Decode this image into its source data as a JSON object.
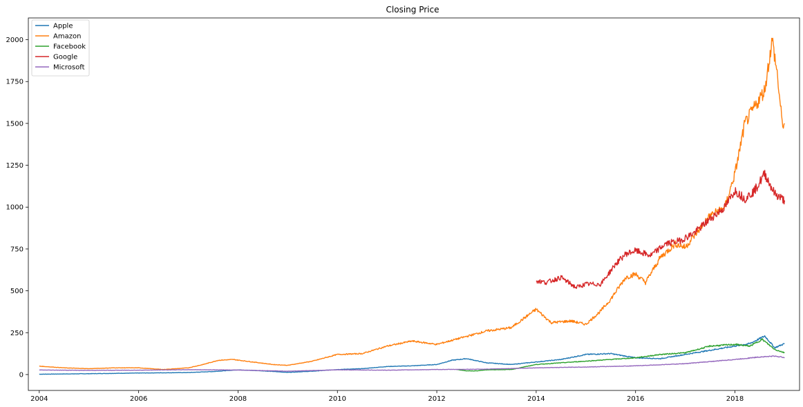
{
  "chart_data": {
    "type": "line",
    "title": "Closing Price",
    "xlabel": "",
    "ylabel": "",
    "xlim": [
      2003.78,
      2019.3
    ],
    "ylim": [
      -95,
      2130
    ],
    "x_ticks": [
      2004,
      2006,
      2008,
      2010,
      2012,
      2014,
      2016,
      2018
    ],
    "x_tick_labels": [
      "2004",
      "2006",
      "2008",
      "2010",
      "2012",
      "2014",
      "2016",
      "2018"
    ],
    "y_ticks": [
      0,
      250,
      500,
      750,
      1000,
      1250,
      1500,
      1750,
      2000
    ],
    "y_tick_labels": [
      "0",
      "250",
      "500",
      "750",
      "1000",
      "1250",
      "1500",
      "1750",
      "2000"
    ],
    "grid": false,
    "legend": "upper-left",
    "series": [
      {
        "name": "Apple",
        "color": "#1f77b4",
        "x": [
          2004.0,
          2005.0,
          2006.0,
          2007.0,
          2007.5,
          2008.0,
          2008.5,
          2009.0,
          2009.5,
          2010.0,
          2010.5,
          2011.0,
          2011.5,
          2012.0,
          2012.3,
          2012.6,
          2013.0,
          2013.5,
          2014.0,
          2014.5,
          2015.0,
          2015.5,
          2016.0,
          2016.5,
          2017.0,
          2017.5,
          2018.0,
          2018.3,
          2018.6,
          2018.8,
          2019.0
        ],
        "y": [
          2,
          5,
          9,
          12,
          18,
          28,
          22,
          13,
          20,
          30,
          35,
          48,
          52,
          60,
          85,
          95,
          70,
          60,
          75,
          90,
          120,
          125,
          100,
          95,
          120,
          145,
          170,
          185,
          230,
          160,
          185
        ]
      },
      {
        "name": "Amazon",
        "color": "#ff7f0e",
        "x": [
          2004.0,
          2004.5,
          2005.0,
          2005.5,
          2006.0,
          2006.5,
          2007.0,
          2007.3,
          2007.6,
          2007.9,
          2008.3,
          2008.7,
          2009.0,
          2009.5,
          2010.0,
          2010.5,
          2011.0,
          2011.5,
          2012.0,
          2012.5,
          2013.0,
          2013.5,
          2014.0,
          2014.3,
          2014.7,
          2015.0,
          2015.3,
          2015.5,
          2015.8,
          2016.0,
          2016.2,
          2016.5,
          2016.8,
          2017.0,
          2017.5,
          2017.8,
          2018.0,
          2018.2,
          2018.4,
          2018.6,
          2018.75,
          2018.85,
          2018.95,
          2019.0
        ],
        "y": [
          50,
          40,
          35,
          40,
          40,
          30,
          40,
          60,
          85,
          90,
          75,
          60,
          55,
          80,
          120,
          125,
          170,
          200,
          180,
          220,
          260,
          280,
          390,
          310,
          320,
          300,
          380,
          450,
          580,
          600,
          550,
          700,
          780,
          760,
          950,
          1000,
          1200,
          1500,
          1600,
          1700,
          2000,
          1800,
          1500,
          1500
        ]
      },
      {
        "name": "Facebook",
        "color": "#2ca02c",
        "x": [
          2012.4,
          2012.6,
          2012.8,
          2013.0,
          2013.5,
          2014.0,
          2014.5,
          2015.0,
          2015.5,
          2016.0,
          2016.5,
          2017.0,
          2017.5,
          2018.0,
          2018.3,
          2018.55,
          2018.8,
          2019.0
        ],
        "y": [
          30,
          22,
          22,
          28,
          30,
          60,
          70,
          80,
          90,
          100,
          120,
          130,
          170,
          180,
          170,
          210,
          150,
          130
        ]
      },
      {
        "name": "Google",
        "color": "#d62728",
        "x": [
          2014.0,
          2014.2,
          2014.5,
          2014.8,
          2015.0,
          2015.3,
          2015.6,
          2015.8,
          2016.0,
          2016.3,
          2016.6,
          2016.9,
          2017.2,
          2017.5,
          2017.8,
          2018.0,
          2018.2,
          2018.4,
          2018.6,
          2018.8,
          2019.0
        ],
        "y": [
          560,
          550,
          580,
          520,
          540,
          540,
          660,
          720,
          740,
          710,
          780,
          800,
          850,
          930,
          1000,
          1100,
          1050,
          1100,
          1200,
          1080,
          1040
        ]
      },
      {
        "name": "Microsoft",
        "color": "#9467bd",
        "x": [
          2004.0,
          2005.0,
          2006.0,
          2007.0,
          2008.0,
          2009.0,
          2010.0,
          2011.0,
          2012.0,
          2013.0,
          2014.0,
          2015.0,
          2016.0,
          2017.0,
          2018.0,
          2018.5,
          2018.8,
          2019.0
        ],
        "y": [
          27,
          25,
          26,
          29,
          27,
          20,
          28,
          26,
          30,
          32,
          40,
          45,
          52,
          65,
          90,
          105,
          110,
          102
        ]
      }
    ]
  }
}
